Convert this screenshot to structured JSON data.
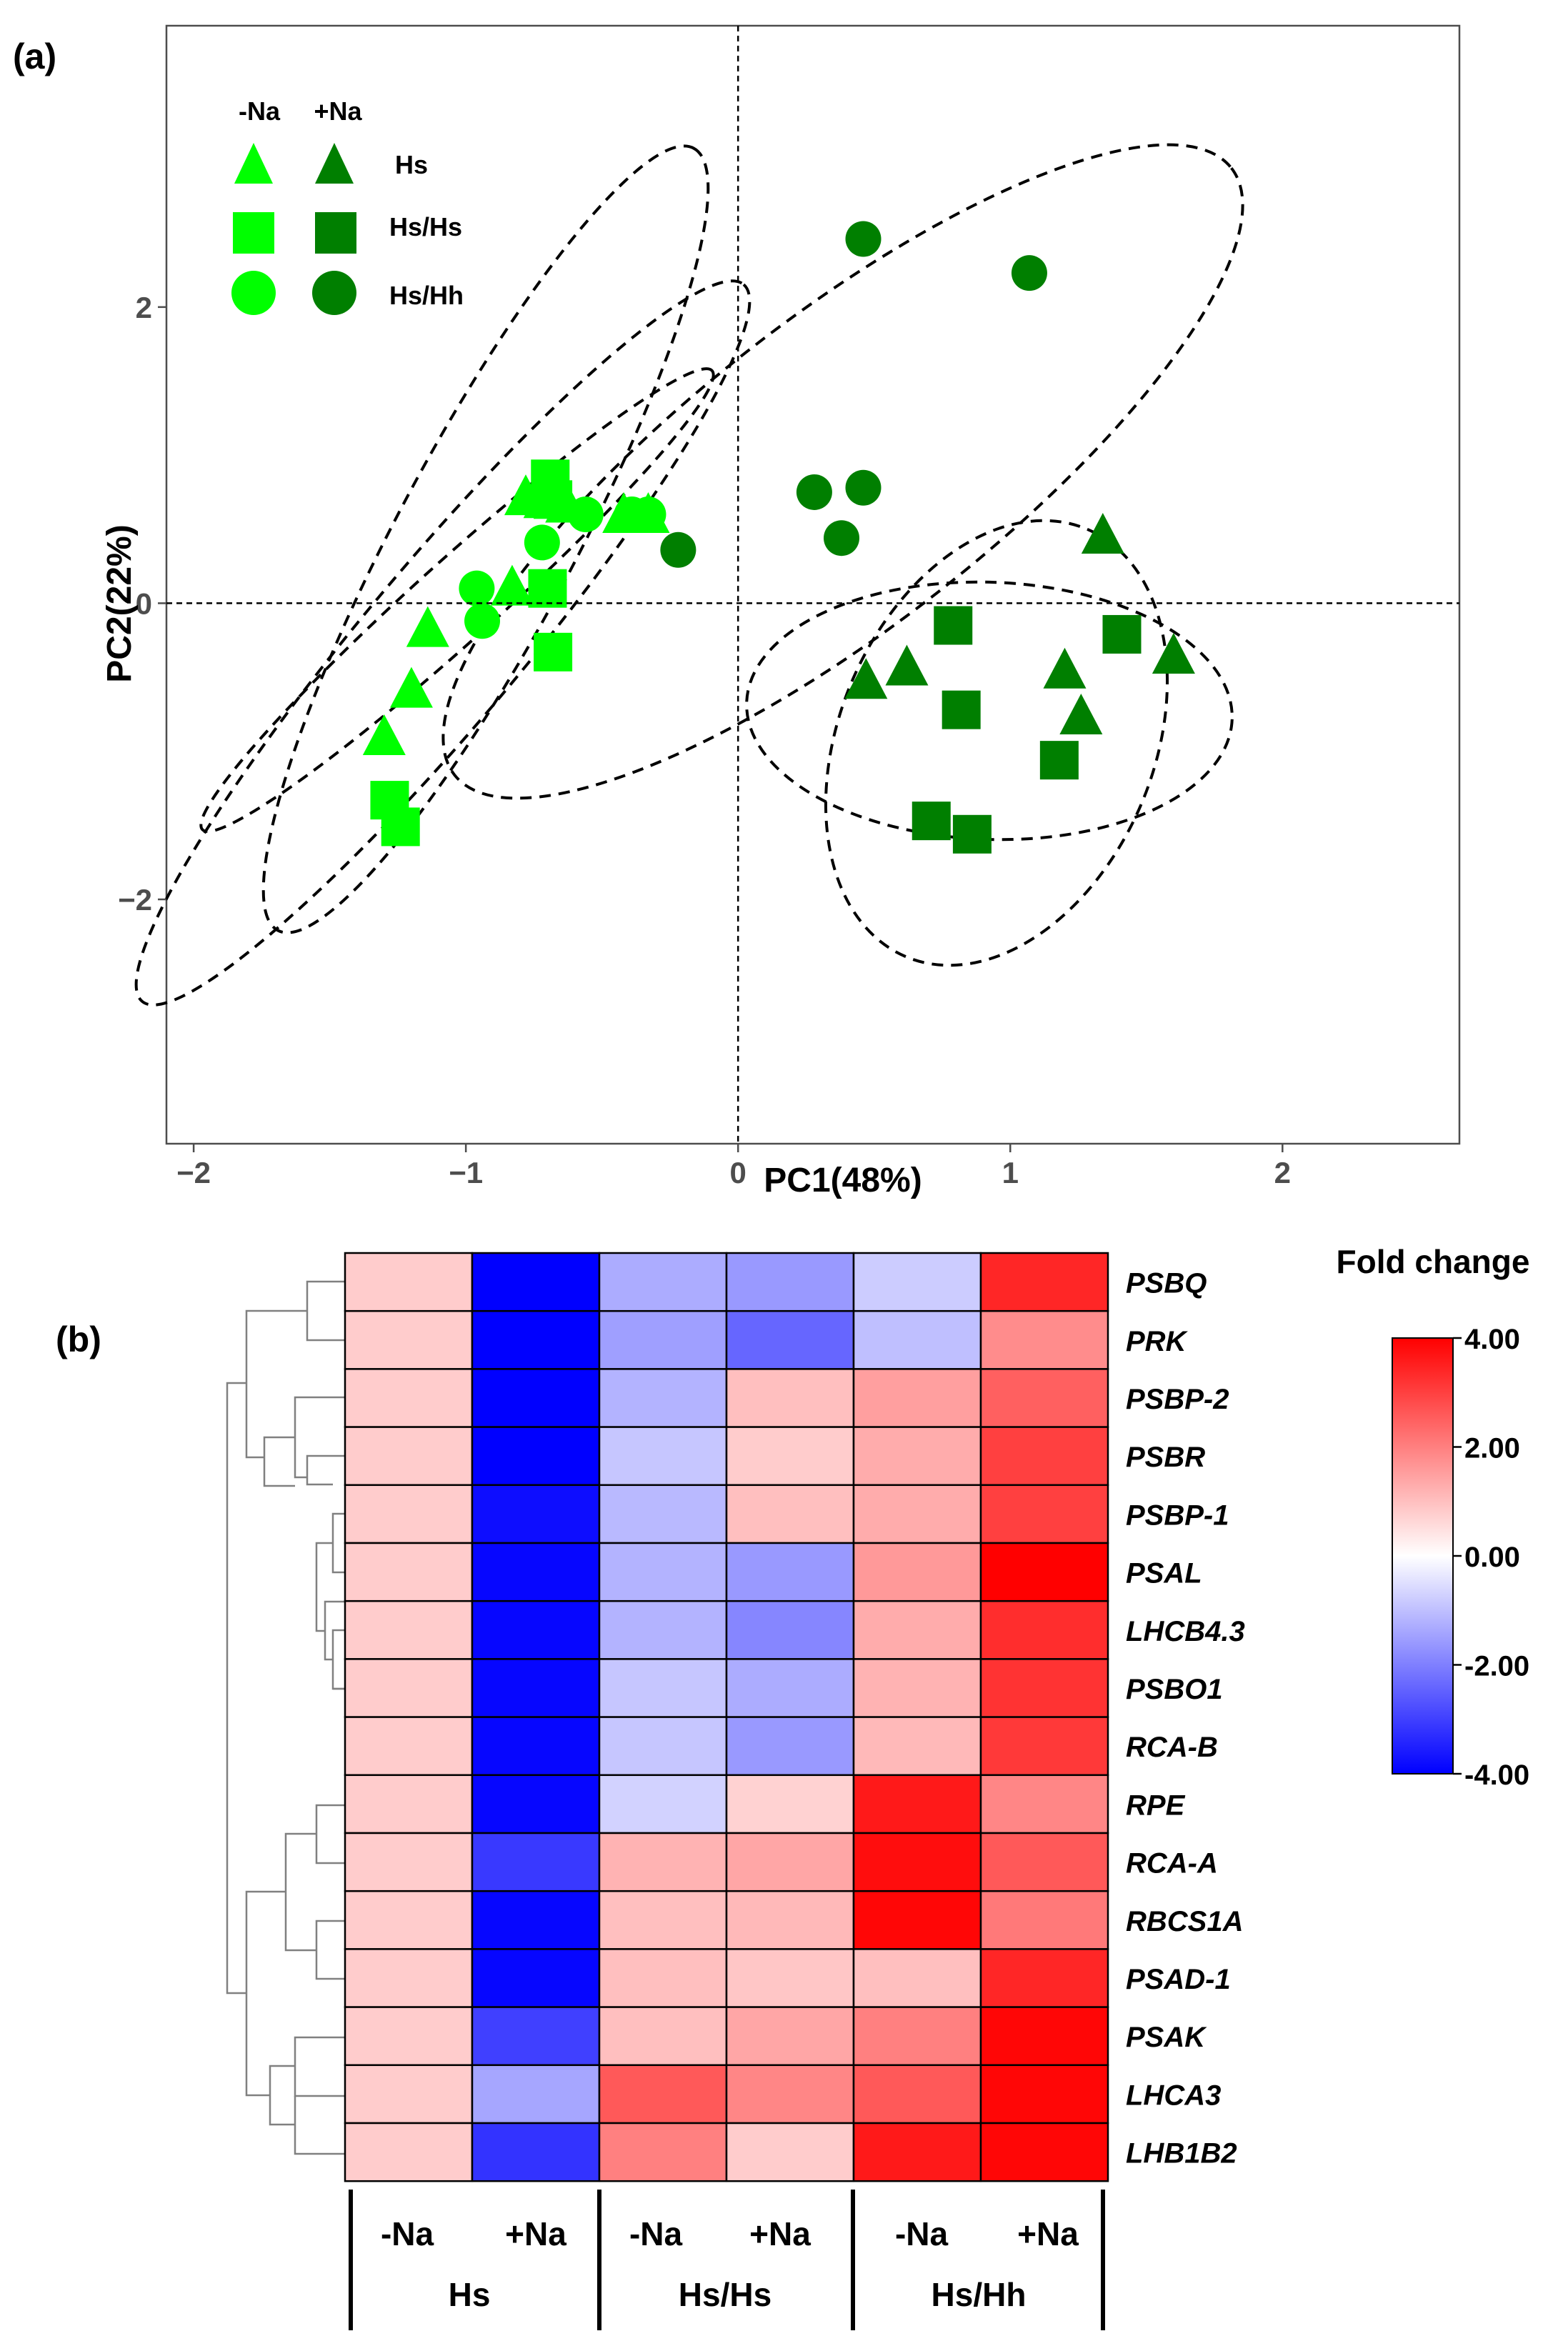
{
  "colors": {
    "light_green": "#00FF00",
    "dark_green": "#007F00",
    "heat_low": "#0000FF",
    "heat_mid": "#FFFFFF",
    "heat_high": "#FF0000"
  },
  "chart_data": [
    {
      "type": "scatter",
      "panel_label": "(a)",
      "xlabel": "PC1(48%)",
      "ylabel": "PC2(22%)",
      "xlim": [
        -2.1,
        2.65
      ],
      "ylim": [
        -3.65,
        3.9
      ],
      "x_ticks": [
        -2,
        -1,
        0,
        1,
        2
      ],
      "x_tick_labels": [
        "−2",
        "−1",
        "0",
        "1",
        "2"
      ],
      "y_ticks": [
        2,
        0,
        -2
      ],
      "y_tick_labels": [
        "2",
        "0",
        "−2"
      ],
      "legend": {
        "position": "top-left",
        "col_labels": [
          "-Na",
          "+Na"
        ],
        "rows": [
          {
            "shape": "triangle",
            "label": "Hs"
          },
          {
            "shape": "square",
            "label": "Hs/Hs"
          },
          {
            "shape": "circle",
            "label": "Hs/Hh"
          }
        ]
      },
      "series": [
        {
          "name": "Hs -Na",
          "shape": "triangle",
          "color": "light_green",
          "points": [
            [
              -1.3,
              -0.9
            ],
            [
              -1.14,
              -0.17
            ],
            [
              -1.2,
              -0.58
            ],
            [
              -0.83,
              0.11
            ],
            [
              -0.78,
              0.72
            ],
            [
              -0.71,
              0.7
            ],
            [
              -0.63,
              0.67
            ],
            [
              -0.42,
              0.6
            ],
            [
              -0.33,
              0.6
            ]
          ]
        },
        {
          "name": "Hs/Hs -Na",
          "shape": "square",
          "color": "light_green",
          "points": [
            [
              -1.28,
              -1.33
            ],
            [
              -1.24,
              -1.51
            ],
            [
              -0.69,
              0.84
            ],
            [
              -0.68,
              0.7
            ],
            [
              -0.68,
              -0.33
            ],
            [
              -0.7,
              0.1
            ]
          ]
        },
        {
          "name": "Hs/Hh -Na",
          "shape": "circle",
          "color": "light_green",
          "points": [
            [
              -0.96,
              0.1
            ],
            [
              -0.94,
              -0.12
            ],
            [
              -0.72,
              0.41
            ],
            [
              -0.56,
              0.6
            ],
            [
              -0.33,
              0.6
            ],
            [
              -0.39,
              0.6
            ]
          ]
        },
        {
          "name": "Hs +Na",
          "shape": "triangle",
          "color": "dark_green",
          "points": [
            [
              0.47,
              -0.52
            ],
            [
              0.62,
              -0.43
            ],
            [
              1.2,
              -0.45
            ],
            [
              1.26,
              -0.76
            ],
            [
              1.34,
              0.46
            ],
            [
              1.6,
              -0.35
            ]
          ]
        },
        {
          "name": "Hs/Hs +Na",
          "shape": "square",
          "color": "dark_green",
          "points": [
            [
              0.79,
              -0.15
            ],
            [
              0.82,
              -0.72
            ],
            [
              0.71,
              -1.47
            ],
            [
              0.86,
              -1.56
            ],
            [
              1.18,
              -1.06
            ],
            [
              1.41,
              -0.21
            ]
          ]
        },
        {
          "name": "Hs/Hh +Na",
          "shape": "circle",
          "color": "dark_green",
          "points": [
            [
              0.46,
              2.46
            ],
            [
              1.07,
              2.23
            ],
            [
              -0.22,
              0.36
            ],
            [
              0.28,
              0.75
            ],
            [
              0.46,
              0.78
            ],
            [
              0.38,
              0.44
            ]
          ]
        }
      ]
    },
    {
      "type": "heatmap",
      "panel_label": "(b)",
      "row_labels": [
        "PSBQ",
        "PRK",
        "PSBP-2",
        "PSBR",
        "PSBP-1",
        "PSAL",
        "LHCB4.3",
        "PSBO1",
        "RCA-B",
        "RPE",
        "RCA-A",
        "RBCS1A",
        "PSAD-1",
        "PSAK",
        "LHCA3",
        "LHB1B2"
      ],
      "col_labels": [
        "-Na",
        "+Na",
        "-Na",
        "+Na",
        "-Na",
        "+Na"
      ],
      "group_labels": [
        "Hs",
        "Hs/Hs",
        "Hs/Hh"
      ],
      "values": [
        [
          0.8,
          -4.0,
          -1.3,
          -1.6,
          -0.8,
          3.4
        ],
        [
          0.8,
          -4.0,
          -1.5,
          -2.4,
          -1.0,
          1.8
        ],
        [
          0.8,
          -4.0,
          -1.2,
          1.0,
          1.5,
          2.5
        ],
        [
          0.8,
          -4.0,
          -0.9,
          0.8,
          1.3,
          3.0
        ],
        [
          0.8,
          -3.8,
          -1.1,
          1.0,
          1.3,
          3.0
        ],
        [
          0.8,
          -3.9,
          -1.2,
          -1.6,
          1.6,
          4.0
        ],
        [
          0.8,
          -3.9,
          -1.2,
          -1.9,
          1.3,
          3.3
        ],
        [
          0.8,
          -3.9,
          -0.9,
          -1.3,
          1.2,
          3.2
        ],
        [
          0.8,
          -3.9,
          -0.9,
          -1.6,
          1.1,
          3.1
        ],
        [
          0.8,
          -3.9,
          -0.7,
          0.7,
          3.6,
          1.9
        ],
        [
          0.8,
          -3.1,
          1.2,
          1.4,
          3.8,
          2.6
        ],
        [
          0.8,
          -3.9,
          1.0,
          1.1,
          3.9,
          2.1
        ],
        [
          0.8,
          -3.9,
          1.0,
          0.9,
          1.0,
          3.4
        ],
        [
          0.8,
          -3.0,
          1.0,
          1.4,
          2.0,
          3.9
        ],
        [
          0.8,
          -1.4,
          2.6,
          1.9,
          2.6,
          3.9
        ],
        [
          0.8,
          -3.2,
          2.0,
          0.8,
          3.6,
          3.9
        ]
      ],
      "legend_title": "Fold change",
      "legend_range": [
        -4.0,
        4.0
      ],
      "legend_ticks": [
        4.0,
        2.0,
        0.0,
        -2.0,
        -4.0
      ],
      "legend_tick_labels": [
        "4.00",
        "2.00",
        "0.00",
        "-2.00",
        "-4.00"
      ],
      "legend_position": "right"
    }
  ]
}
